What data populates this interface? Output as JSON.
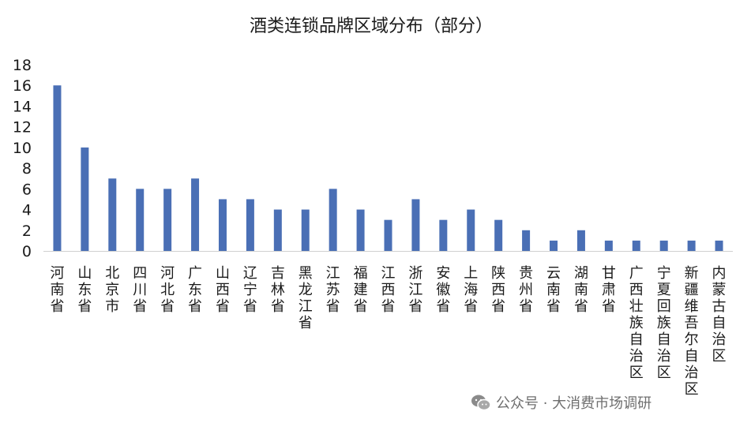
{
  "chart_data": {
    "type": "bar",
    "title": "酒类连锁品牌区域分布（部分）",
    "categories": [
      "河南省",
      "山东省",
      "北京市",
      "四川省",
      "河北省",
      "广东省",
      "山西省",
      "辽宁省",
      "吉林省",
      "黑龙江省",
      "江苏省",
      "福建省",
      "江西省",
      "浙江省",
      "安徽省",
      "上海省",
      "陕西省",
      "贵州省",
      "云南省",
      "湖南省",
      "甘肃省",
      "广西壮族自治区",
      "宁夏回族自治区",
      "新疆维吾尔自治区",
      "内蒙古自治区"
    ],
    "values": [
      16,
      10,
      7,
      6,
      6,
      7,
      5,
      5,
      4,
      4,
      6,
      4,
      3,
      5,
      3,
      4,
      3,
      2,
      1,
      2,
      1,
      1,
      1,
      1,
      1
    ],
    "ylim": [
      0,
      18
    ],
    "yticks": [
      0,
      2,
      4,
      6,
      8,
      10,
      12,
      14,
      16,
      18
    ],
    "xlabel": "",
    "ylabel": "",
    "grid": false,
    "legend": "none",
    "bar_color": "#4a6fb5"
  },
  "watermark": {
    "text": "公众号 · 大消费市场调研",
    "icon": "wechat-icon"
  }
}
